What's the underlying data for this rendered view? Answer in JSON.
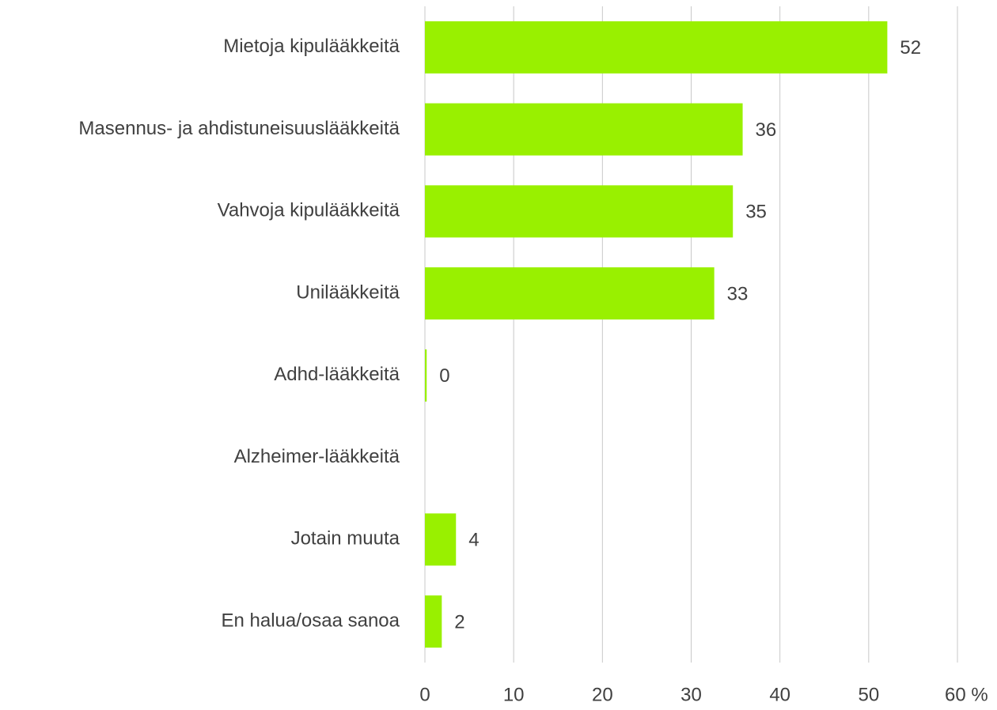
{
  "chart_data": {
    "type": "hbar",
    "categories": [
      "Mietoja kipulääkkeitä",
      "Masennus- ja ahdistuneisuuslääkkeitä",
      "Vahvoja kipulääkkeitä",
      "Unilääkkeitä",
      "Adhd-lääkkeitä",
      "Alzheimer-lääkkeitä",
      "Jotain muuta",
      "En halua/osaa sanoa"
    ],
    "values": [
      52.1,
      35.8,
      34.7,
      32.6,
      0.2,
      null,
      3.5,
      1.9
    ],
    "value_labels": [
      "52",
      "36",
      "35",
      "33",
      "0",
      null,
      "4",
      "2"
    ],
    "color": "#99f000",
    "xlim": [
      0,
      60
    ],
    "xticks": [
      0,
      10,
      20,
      30,
      40,
      50,
      {
        "value": 60,
        "label": "60 %"
      }
    ],
    "grid": true
  }
}
